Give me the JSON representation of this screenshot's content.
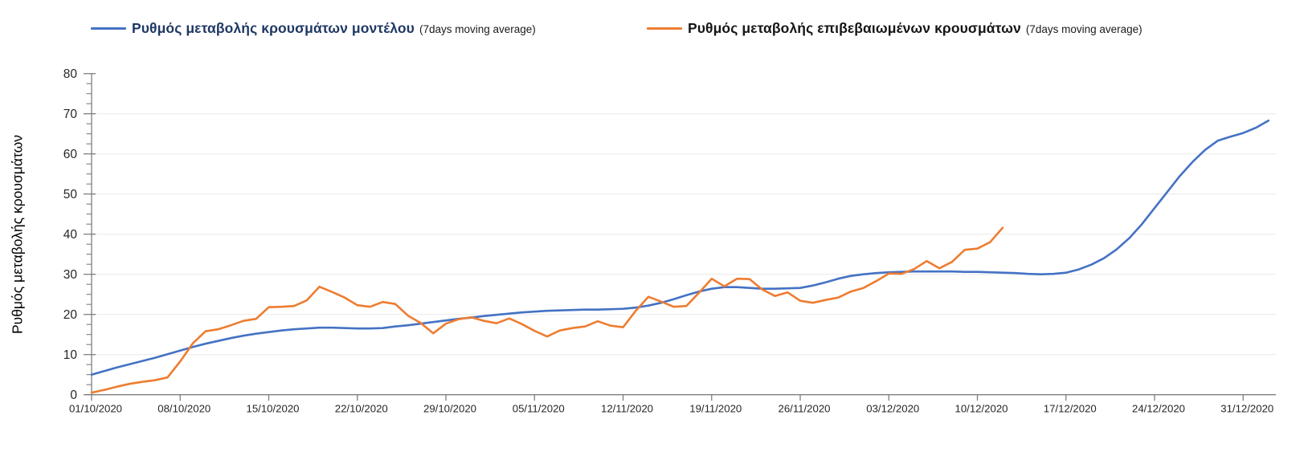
{
  "legend": {
    "items": [
      {
        "id": "model",
        "label": "Ρυθμός μεταβολής κρουσμάτων μοντέλου",
        "suffix": "(7days moving average)",
        "color": "#4472C4"
      },
      {
        "id": "confirmed",
        "label": "Ρυθμός μεταβολής επιβεβαιωμένων κρουσμάτων",
        "suffix": "(7days moving average)",
        "color": "#ED7D31"
      }
    ]
  },
  "y_axis": {
    "title": "Ρυθμός μεταβολής κρουσμάτων",
    "ticks": [
      0,
      10,
      20,
      30,
      40,
      50,
      60,
      70,
      80
    ],
    "minor_tick_step": 2.5
  },
  "x_axis": {
    "labels": [
      "01/10/2020",
      "08/10/2020",
      "15/10/2020",
      "22/10/2020",
      "29/10/2020",
      "05/11/2020",
      "12/11/2020",
      "19/11/2020",
      "26/11/2020",
      "03/12/2020",
      "10/12/2020",
      "17/12/2020",
      "24/12/2020",
      "31/12/2020"
    ]
  },
  "chart_data": {
    "type": "line",
    "x_unit": "days since 01/10/2020 (daily points)",
    "xlabel": "",
    "ylabel": "Ρυθμός μεταβολής κρουσμάτων",
    "ylim": [
      0,
      80
    ],
    "grid": "horizontal",
    "legend_position": "top",
    "series": [
      {
        "name": "Ρυθμός μεταβολής κρουσμάτων μοντέλου (7days moving average)",
        "color": "#4472C4",
        "start_date": "01/10/2020",
        "end_date": "02/01/2021",
        "values": [
          5.0,
          5.9,
          6.8,
          7.6,
          8.4,
          9.2,
          10.1,
          11.0,
          11.9,
          12.7,
          13.4,
          14.1,
          14.7,
          15.2,
          15.6,
          16.0,
          16.3,
          16.5,
          16.7,
          16.7,
          16.6,
          16.5,
          16.5,
          16.6,
          17.0,
          17.3,
          17.7,
          18.1,
          18.5,
          18.9,
          19.2,
          19.6,
          19.9,
          20.2,
          20.5,
          20.7,
          20.9,
          21.0,
          21.1,
          21.2,
          21.2,
          21.3,
          21.4,
          21.7,
          22.2,
          22.9,
          23.8,
          24.8,
          25.7,
          26.4,
          26.8,
          26.8,
          26.6,
          26.4,
          26.4,
          26.5,
          26.6,
          27.2,
          28.0,
          28.9,
          29.6,
          30.0,
          30.3,
          30.5,
          30.6,
          30.7,
          30.7,
          30.7,
          30.7,
          30.6,
          30.6,
          30.5,
          30.4,
          30.3,
          30.1,
          30.0,
          30.1,
          30.4,
          31.2,
          32.4,
          34.0,
          36.2,
          39.0,
          42.5,
          46.5,
          50.5,
          54.5,
          58.0,
          61.0,
          63.3,
          64.3,
          65.2,
          66.5,
          68.3
        ]
      },
      {
        "name": "Ρυθμός μεταβολής επιβεβαιωμένων κρουσμάτων (7days moving average)",
        "color": "#ED7D31",
        "start_date": "01/10/2020",
        "end_date": "12/12/2020",
        "values": [
          0.5,
          1.2,
          2.0,
          2.7,
          3.2,
          3.6,
          4.3,
          8.3,
          12.8,
          15.8,
          16.3,
          17.3,
          18.4,
          18.9,
          21.8,
          21.9,
          22.1,
          23.5,
          26.9,
          25.6,
          24.2,
          22.3,
          21.9,
          23.1,
          22.6,
          19.7,
          17.9,
          15.3,
          17.7,
          18.8,
          19.3,
          18.4,
          17.8,
          19.0,
          17.6,
          15.9,
          14.5,
          16.0,
          16.6,
          17.0,
          18.3,
          17.2,
          16.8,
          20.9,
          24.4,
          23.2,
          21.9,
          22.1,
          25.4,
          28.9,
          27.0,
          28.9,
          28.8,
          26.2,
          24.6,
          25.5,
          23.4,
          22.9,
          23.6,
          24.2,
          25.7,
          26.6,
          28.3,
          30.2,
          30.1,
          31.3,
          33.3,
          31.5,
          33.1,
          36.1,
          36.4,
          38.0,
          41.6
        ]
      }
    ]
  },
  "colors": {
    "gridline": "#e8e8e8",
    "axis": "#7f7f7f",
    "tick_label": "#262626"
  }
}
